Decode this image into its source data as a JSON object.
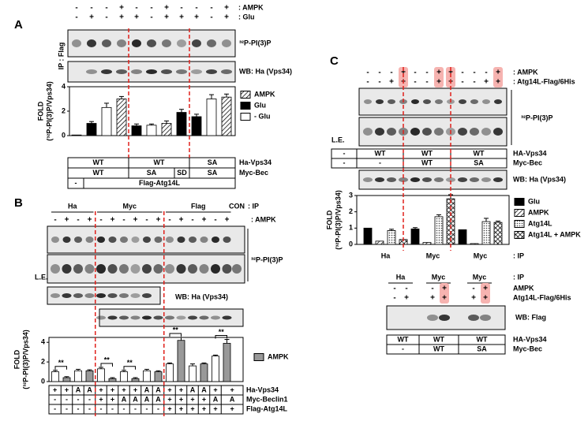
{
  "panel_a": {
    "letter": "A",
    "rows": [
      {
        "label": ": AMPK",
        "signs": [
          "-",
          "-",
          "-",
          "+",
          "-",
          "-",
          "+",
          "-",
          "-",
          "-",
          "+"
        ]
      },
      {
        "label": ": Glu",
        "signs": [
          "-",
          "+",
          "-",
          "+",
          "+",
          "-",
          "+",
          "+",
          "+",
          "-",
          "+"
        ]
      }
    ],
    "side_label": "IP : Flag",
    "blots": [
      "³²P-PI(3)P",
      "WB: Ha (Vps34)"
    ],
    "table": [
      {
        "label": "Ha-Vps34",
        "cells": [
          "WT",
          "WT",
          "SA"
        ]
      },
      {
        "label": "Myc-Bec",
        "cells": [
          "WT",
          "SA",
          "SD",
          "SA"
        ]
      },
      {
        "cells": [
          "-",
          "Flag-Atg14L"
        ]
      }
    ]
  },
  "panel_b": {
    "letter": "B",
    "ip": [
      "Ha",
      "Myc",
      "Flag",
      "CON"
    ],
    "ip_label": ": IP",
    "rows": [
      {
        "label": ": AMPK",
        "signs": [
          "-",
          "+",
          "-",
          "+",
          "-",
          "+",
          "-",
          "+",
          "-",
          "+",
          "-",
          "+",
          "-",
          "+",
          "-",
          "+"
        ]
      }
    ],
    "blot": "³²P-PI(3)P",
    "le": "L.E.",
    "wb": "WB: Ha (Vps34)",
    "table": [
      {
        "label": "Ha-Vps34",
        "cells": [
          "+",
          "+",
          "A",
          "A",
          "+",
          "+",
          "+",
          "+",
          "A",
          "A",
          "+",
          "+",
          "A",
          "A",
          "+",
          "+"
        ]
      },
      {
        "label": "Myc-Beclin1",
        "cells": [
          "-",
          "-",
          "-",
          "-",
          "+",
          "+",
          "A",
          "A",
          "A",
          "A",
          "+",
          "+",
          "+",
          "+",
          "A",
          "A"
        ]
      },
      {
        "label": "Flag-Atg14L",
        "cells": [
          "-",
          "-",
          "-",
          "-",
          "-",
          "-",
          "-",
          "-",
          "-",
          "-",
          "+",
          "+",
          "+",
          "+",
          "+",
          "+"
        ]
      }
    ]
  },
  "panel_c": {
    "letter": "C",
    "rows": [
      {
        "label": ": AMPK",
        "signs": [
          "-",
          "-",
          "-",
          "+",
          "-",
          "-",
          "+",
          "+",
          "-",
          "-",
          "-",
          "+"
        ],
        "highlight": true
      },
      {
        "label": ": Atg14L-Flag/6His",
        "signs": [
          "-",
          "-",
          "+",
          "+",
          "-",
          "-",
          "+",
          "+",
          "-",
          "-",
          "+",
          "+"
        ]
      }
    ],
    "blot": "³²P-PI(3)P",
    "le": "L.E.",
    "table": [
      {
        "label": "HA-Vps34",
        "cells": [
          "-",
          "WT",
          "WT",
          "WT"
        ]
      },
      {
        "label": "Myc-Bec",
        "cells": [
          "-",
          "-",
          "WT",
          "SA"
        ]
      }
    ],
    "wb": "WB: Ha (Vps34)",
    "ip": [
      "Ha",
      "Myc",
      "Myc"
    ],
    "ip_label": ": IP"
  },
  "panel_c2": {
    "ip": [
      "Ha",
      "Myc",
      "Myc"
    ],
    "ip_label": ": IP",
    "rows": [
      {
        "label": "AMPK",
        "signs": [
          "-",
          "-",
          "-",
          "+",
          "-",
          "+"
        ],
        "highlight": true
      },
      {
        "label": "Atg14L-Flag/6His",
        "signs": [
          "-",
          "+",
          "+",
          "+",
          "+",
          "+"
        ]
      }
    ],
    "wb": "WB: Flag",
    "table": [
      {
        "label": "HA-Vps34",
        "cells": [
          "WT",
          "WT",
          "WT"
        ]
      },
      {
        "label": "Myc-Bec",
        "cells": [
          "-",
          "WT",
          "SA"
        ]
      }
    ]
  },
  "chart_data": [
    {
      "type": "bar",
      "ylabel": [
        "FOLD",
        "(³²P-PI(3)P/Vps34)"
      ],
      "ylim": [
        0,
        4
      ],
      "yticks": [
        0,
        2,
        4
      ],
      "series": [
        {
          "name": "AMPK",
          "pattern": "hatch",
          "values": [
            null,
            null,
            null,
            3.0,
            null,
            null,
            1.0,
            null,
            null,
            null,
            3.15
          ],
          "errors": [
            null,
            null,
            null,
            0.2,
            null,
            null,
            0.2,
            null,
            null,
            null,
            0.25
          ]
        },
        {
          "name": "Glu",
          "pattern": "solid",
          "color": "#000000",
          "values": [
            0.05,
            1.0,
            null,
            null,
            0.8,
            null,
            null,
            1.9,
            1.55,
            null,
            null
          ],
          "errors": [
            null,
            0.15,
            null,
            null,
            0.15,
            null,
            null,
            0.25,
            0.2,
            null,
            null
          ]
        },
        {
          "name": "- Glu",
          "pattern": "solid",
          "color": "#ffffff",
          "values": [
            null,
            null,
            2.3,
            null,
            null,
            0.85,
            null,
            null,
            null,
            3.0,
            null
          ],
          "errors": [
            null,
            null,
            0.35,
            null,
            null,
            0.1,
            null,
            null,
            null,
            0.35,
            null
          ]
        }
      ]
    },
    {
      "type": "bar",
      "ylabel": [
        "FOLD",
        "(³²P-PI(3)P/Vps34)"
      ],
      "ylim": [
        0,
        4.5
      ],
      "yticks": [
        0,
        2,
        4
      ],
      "series": [
        {
          "pattern": "solid",
          "color": "#ffffff",
          "values": [
            1.0,
            null,
            1.1,
            null,
            1.3,
            null,
            1.0,
            null,
            1.1,
            null,
            1.8,
            null,
            1.6,
            null,
            2.6,
            null
          ],
          "errors": [
            0.15,
            null,
            0.15,
            null,
            0.15,
            null,
            0.15,
            null,
            0.15,
            null,
            0.1,
            null,
            0.2,
            null,
            0.1,
            null
          ]
        },
        {
          "name": "AMPK",
          "pattern": "solid",
          "color": "#999999",
          "values": [
            null,
            0.4,
            null,
            1.1,
            null,
            0.3,
            null,
            0.3,
            null,
            1.0,
            null,
            4.2,
            null,
            1.8,
            null,
            3.9
          ],
          "errors": [
            null,
            0.1,
            null,
            0.1,
            null,
            0.1,
            null,
            0.1,
            null,
            0.1,
            null,
            0.3,
            null,
            0.1,
            null,
            0.4
          ]
        }
      ],
      "annotations": [
        "**",
        "**",
        "**",
        "**",
        "**"
      ]
    },
    {
      "type": "bar",
      "ylabel": [
        "FOLD",
        "(³²P-PI(3)P/Vps34)"
      ],
      "ylim": [
        0,
        3
      ],
      "yticks": [
        0,
        1,
        2,
        3
      ],
      "series": [
        {
          "name": "Glu",
          "pattern": "solid",
          "color": "#000000",
          "values": [
            1.0,
            null,
            null,
            null,
            0.95,
            null,
            null,
            null,
            0.9,
            null,
            null,
            null
          ],
          "errors": [
            null,
            null,
            null,
            null,
            0.08,
            null,
            null,
            null,
            null,
            null,
            null,
            null
          ]
        },
        {
          "name": "AMPK",
          "pattern": "hatch",
          "values": [
            null,
            0.2,
            null,
            null,
            null,
            0.12,
            null,
            null,
            null,
            0.05,
            null,
            null
          ],
          "errors": [
            null,
            null,
            null,
            null,
            null,
            null,
            null,
            null,
            null,
            null,
            null,
            null
          ]
        },
        {
          "name": "Atg14L",
          "pattern": "dots",
          "values": [
            null,
            null,
            0.85,
            null,
            null,
            null,
            1.7,
            null,
            null,
            null,
            1.4,
            null
          ],
          "errors": [
            null,
            null,
            0.08,
            null,
            null,
            null,
            0.12,
            null,
            null,
            null,
            0.2,
            null
          ]
        },
        {
          "name": "Atg14L + AMPK",
          "pattern": "cross",
          "values": [
            null,
            null,
            null,
            0.3,
            null,
            null,
            null,
            2.8,
            null,
            null,
            null,
            1.35
          ],
          "errors": [
            null,
            null,
            null,
            null,
            null,
            null,
            null,
            0.25,
            null,
            null,
            null,
            0.08
          ]
        }
      ]
    }
  ]
}
